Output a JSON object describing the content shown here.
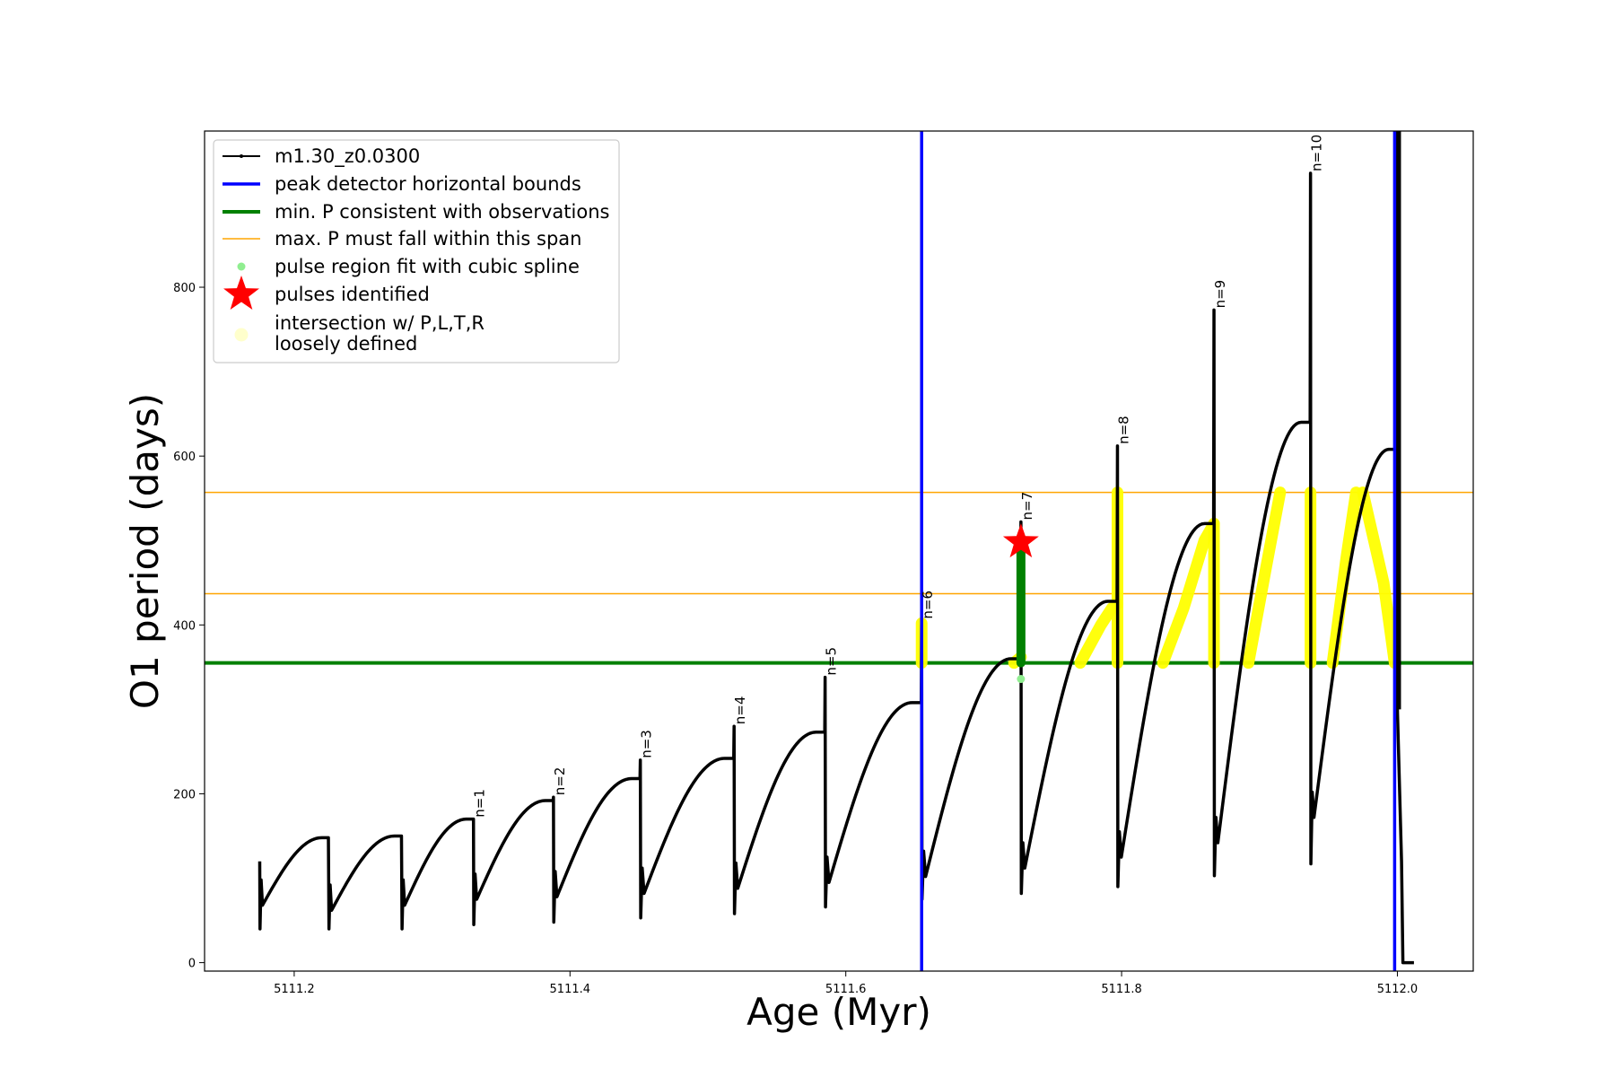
{
  "chart_data": {
    "type": "line",
    "title": "",
    "xlabel": "Age (Myr)",
    "ylabel": "O1 period (days)",
    "xlim": [
      5111.135,
      5112.055
    ],
    "ylim": [
      -10,
      985
    ],
    "xticks": [
      5111.2,
      5111.4,
      5111.6,
      5111.8,
      5112.0
    ],
    "xtick_labels": [
      "5111.2",
      "5111.4",
      "5111.6",
      "5111.8",
      "5112.0"
    ],
    "yticks": [
      0,
      200,
      400,
      600,
      800
    ],
    "ytick_labels": [
      "0",
      "200",
      "400",
      "600",
      "800"
    ],
    "grid": false,
    "legend_position": "upper-left",
    "colors": {
      "model": "#000000",
      "bounds": "#0000ff",
      "min_period": "#008000",
      "max_period": "#ffa500",
      "spline": "#90ee90",
      "star": "#ff0000",
      "loose": "#ffff00"
    },
    "legend": [
      {
        "key": "model",
        "label": "m1.30_z0.0300"
      },
      {
        "key": "bounds",
        "label": "peak detector horizontal bounds"
      },
      {
        "key": "min_period",
        "label": "min. P consistent with observations"
      },
      {
        "key": "max_period",
        "label": "max. P must fall within this span"
      },
      {
        "key": "spline",
        "label": "pulse region fit with cubic spline"
      },
      {
        "key": "star",
        "label": "pulses identified"
      },
      {
        "key": "loose",
        "label": "intersection w/ P,L,T,R\nloosely defined"
      }
    ],
    "vertical_lines": {
      "peak_detector_bounds": [
        5111.655,
        5111.998
      ]
    },
    "horizontal_lines": {
      "min_period": 355,
      "max_period_span": [
        437,
        557
      ]
    },
    "pulse_labels": [
      {
        "label": "n=1",
        "x": 5111.33,
        "y": 170
      },
      {
        "label": "n=2",
        "x": 5111.388,
        "y": 196
      },
      {
        "label": "n=3",
        "x": 5111.451,
        "y": 240
      },
      {
        "label": "n=4",
        "x": 5111.519,
        "y": 280
      },
      {
        "label": "n=5",
        "x": 5111.585,
        "y": 338
      },
      {
        "label": "n=6",
        "x": 5111.655,
        "y": 405
      },
      {
        "label": "n=7",
        "x": 5111.727,
        "y": 522
      },
      {
        "label": "n=8",
        "x": 5111.797,
        "y": 612
      },
      {
        "label": "n=9",
        "x": 5111.867,
        "y": 773
      },
      {
        "label": "n=10",
        "x": 5111.937,
        "y": 935
      }
    ],
    "series": [
      {
        "key": "model",
        "name": "m1.30_z0.0300",
        "cycles": [
          {
            "x0": 5111.175,
            "x1": 5111.225,
            "peak": 120,
            "dip": 40,
            "min": 68,
            "top": 148
          },
          {
            "x0": 5111.225,
            "x1": 5111.278,
            "peak": 98,
            "dip": 40,
            "min": 62,
            "top": 150
          },
          {
            "x0": 5111.278,
            "x1": 5111.33,
            "peak": 95,
            "dip": 40,
            "min": 68,
            "top": 170
          },
          {
            "x0": 5111.33,
            "x1": 5111.388,
            "peak": 170,
            "dip": 45,
            "min": 75,
            "top": 192
          },
          {
            "x0": 5111.388,
            "x1": 5111.451,
            "peak": 196,
            "dip": 48,
            "min": 78,
            "top": 218
          },
          {
            "x0": 5111.451,
            "x1": 5111.519,
            "peak": 240,
            "dip": 53,
            "min": 82,
            "top": 242
          },
          {
            "x0": 5111.519,
            "x1": 5111.585,
            "peak": 280,
            "dip": 58,
            "min": 88,
            "top": 273
          },
          {
            "x0": 5111.585,
            "x1": 5111.655,
            "peak": 338,
            "dip": 66,
            "min": 95,
            "top": 308
          },
          {
            "x0": 5111.655,
            "x1": 5111.727,
            "peak": 400,
            "dip": 75,
            "min": 102,
            "top": 360
          },
          {
            "x0": 5111.727,
            "x1": 5111.797,
            "peak": 522,
            "dip": 82,
            "min": 112,
            "top": 428
          },
          {
            "x0": 5111.797,
            "x1": 5111.867,
            "peak": 612,
            "dip": 90,
            "min": 125,
            "top": 520
          },
          {
            "x0": 5111.867,
            "x1": 5111.937,
            "peak": 773,
            "dip": 103,
            "min": 142,
            "top": 640
          },
          {
            "x0": 5111.937,
            "x1": 5112.0,
            "peak": 935,
            "dip": 117,
            "min": 172,
            "top": 608
          }
        ],
        "tail": [
          [
            5112.0,
            985
          ],
          [
            5112.0,
            300
          ],
          [
            5112.003,
            120
          ],
          [
            5112.004,
            0
          ],
          [
            5112.012,
            0
          ]
        ]
      },
      {
        "key": "loose",
        "name": "intersection w/ P,L,T,R loosely defined",
        "segments": [
          [
            [
              5111.655,
              355
            ],
            [
              5111.655,
              402
            ]
          ],
          [
            [
              5111.722,
              355
            ],
            [
              5111.727,
              362
            ]
          ],
          [
            [
              5111.77,
              355
            ],
            [
              5111.785,
              400
            ],
            [
              5111.793,
              420
            ],
            [
              5111.797,
              425
            ]
          ],
          [
            [
              5111.797,
              355
            ],
            [
              5111.797,
              557
            ]
          ],
          [
            [
              5111.83,
              355
            ],
            [
              5111.845,
              420
            ],
            [
              5111.86,
              500
            ],
            [
              5111.867,
              520
            ]
          ],
          [
            [
              5111.867,
              355
            ],
            [
              5111.867,
              520
            ]
          ],
          [
            [
              5111.892,
              355
            ],
            [
              5111.905,
              470
            ],
            [
              5111.915,
              557
            ]
          ],
          [
            [
              5111.937,
              355
            ],
            [
              5111.937,
              557
            ]
          ],
          [
            [
              5111.953,
              355
            ],
            [
              5111.963,
              480
            ],
            [
              5111.97,
              557
            ]
          ],
          [
            [
              5111.975,
              557
            ],
            [
              5111.99,
              450
            ],
            [
              5111.998,
              355
            ]
          ]
        ]
      },
      {
        "key": "spline",
        "name": "pulse region fit with cubic spline",
        "points": [
          [
            5111.727,
            355
          ],
          [
            5111.727,
            380
          ],
          [
            5111.727,
            410
          ],
          [
            5111.727,
            440
          ],
          [
            5111.727,
            470
          ],
          [
            5111.727,
            498
          ],
          [
            5111.727,
            336
          ]
        ]
      }
    ],
    "pulses_identified": [
      {
        "x": 5111.727,
        "y": 498
      }
    ]
  }
}
